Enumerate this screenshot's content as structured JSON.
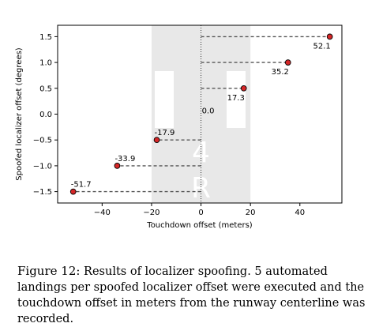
{
  "chart_data": {
    "type": "scatter",
    "xlabel": "Touchdown offset (meters)",
    "ylabel": "Spoofed localizer offset (degrees)",
    "xlim": [
      -58,
      57
    ],
    "ylim": [
      -1.72,
      1.72
    ],
    "x_ticks": [
      -40,
      -20,
      0,
      20,
      40
    ],
    "y_ticks": [
      -1.5,
      -1.0,
      -0.5,
      0.0,
      0.5,
      1.0,
      1.5
    ],
    "grid": false,
    "runway_band": [
      -20,
      20
    ],
    "runway_marking": "4R",
    "points": [
      {
        "y": 1.5,
        "x": 52.1,
        "label": "52.1"
      },
      {
        "y": 1.0,
        "x": 35.2,
        "label": "35.2"
      },
      {
        "y": 0.5,
        "x": 17.3,
        "label": "17.3"
      },
      {
        "y": 0.0,
        "x": 0.0,
        "label": "0.0"
      },
      {
        "y": -0.5,
        "x": -17.9,
        "label": "-17.9"
      },
      {
        "y": -1.0,
        "x": -33.9,
        "label": "-33.9"
      },
      {
        "y": -1.5,
        "x": -51.7,
        "label": "-51.7"
      }
    ],
    "colors": {
      "marker": "#d62728",
      "band": "#e8e8e8",
      "dash": "#555555"
    }
  },
  "caption": {
    "label": "Figure 12:",
    "text": "Results of localizer spoofing. 5 automated landings per spoofed localizer offset were executed and the touchdown offset in meters from the runway centerline was recorded."
  }
}
